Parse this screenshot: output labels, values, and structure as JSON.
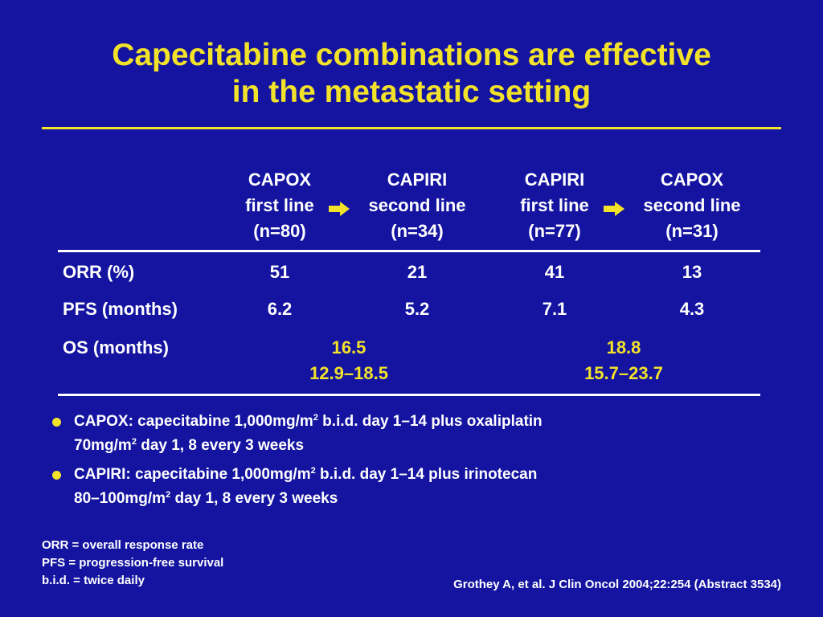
{
  "title": {
    "line1": "Capecitabine combinations are effective",
    "line2": "in the metastatic setting"
  },
  "table": {
    "columns": [
      {
        "name": "CAPOX",
        "line": "first line",
        "n": "(n=80)"
      },
      {
        "name": "CAPIRI",
        "line": "second line",
        "n": "(n=34)"
      },
      {
        "name": "CAPIRI",
        "line": "first line",
        "n": "(n=77)"
      },
      {
        "name": "CAPOX",
        "line": "second line",
        "n": "(n=31)"
      }
    ],
    "rows": [
      {
        "label": "ORR (%)",
        "values": [
          "51",
          "21",
          "41",
          "13"
        ]
      },
      {
        "label": "PFS (months)",
        "values": [
          "6.2",
          "5.2",
          "7.1",
          "4.3"
        ]
      }
    ],
    "os": {
      "label": "OS (months)",
      "groups": [
        {
          "median": "16.5",
          "range": "12.9–18.5"
        },
        {
          "median": "18.8",
          "range": "15.7–23.7"
        }
      ]
    }
  },
  "bullets": [
    {
      "part1": "CAPOX: capecitabine 1,000mg/m",
      "sup1": "2",
      "part2": " b.i.d. day 1–14 plus oxaliplatin",
      "part3": "70mg/m",
      "sup2": "2",
      "part4": " day 1, 8 every 3 weeks"
    },
    {
      "part1": "CAPIRI: capecitabine 1,000mg/m",
      "sup1": "2",
      "part2": " b.i.d. day 1–14 plus irinotecan",
      "part3": "80–100mg/m",
      "sup2": "2",
      "part4": " day 1, 8 every 3 weeks"
    }
  ],
  "abbreviations": [
    "ORR = overall response rate",
    "PFS = progression-free survival",
    "b.i.d. = twice daily"
  ],
  "reference": "Grothey A, et al. J Clin Oncol 2004;22:254 (Abstract 3534)",
  "colors": {
    "background": "#1414a0",
    "accent": "#f2e22a",
    "text": "#ffffff"
  },
  "icons": [
    "right-arrow-icon",
    "right-arrow-icon",
    "bullet-dot-icon"
  ]
}
